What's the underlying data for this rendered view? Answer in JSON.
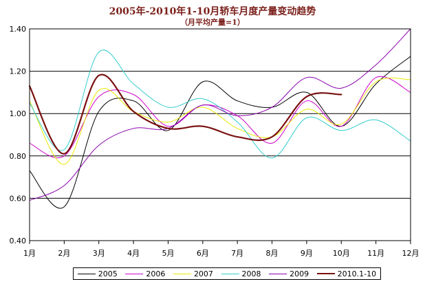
{
  "chart_data": {
    "type": "line",
    "title": "2005年-2010年1-10月轿车月度产量变动趋势",
    "subtitle": "（月平均产量=1）",
    "categories": [
      "1月",
      "2月",
      "3月",
      "4月",
      "5月",
      "6月",
      "7月",
      "8月",
      "9月",
      "10月",
      "11月",
      "12月"
    ],
    "ylim": [
      0.4,
      1.4
    ],
    "yticks": [
      "0.40",
      "0.60",
      "0.80",
      "1.00",
      "1.20",
      "1.40"
    ],
    "grid": true,
    "legend_position": "bottom",
    "series": [
      {
        "name": "2005",
        "color": "#000000",
        "width": 1,
        "values": [
          0.73,
          0.56,
          1.01,
          1.06,
          0.92,
          1.15,
          1.06,
          1.03,
          1.1,
          0.94,
          1.14,
          1.27
        ]
      },
      {
        "name": "2006",
        "color": "#cc00cc",
        "width": 1,
        "values": [
          0.86,
          0.8,
          1.08,
          1.09,
          0.94,
          1.04,
          0.99,
          0.86,
          1.06,
          0.94,
          1.17,
          1.1
        ]
      },
      {
        "name": "2007",
        "color": "#e8e800",
        "width": 1,
        "values": [
          1.06,
          0.76,
          1.11,
          1.01,
          0.96,
          1.03,
          0.93,
          0.89,
          1.02,
          0.95,
          1.15,
          1.16
        ]
      },
      {
        "name": "2008",
        "color": "#33cccc",
        "width": 1,
        "values": [
          1.05,
          0.83,
          1.29,
          1.14,
          1.03,
          1.07,
          0.96,
          0.79,
          0.98,
          0.92,
          0.97,
          0.87
        ]
      },
      {
        "name": "2009",
        "color": "#8800aa",
        "width": 1,
        "values": [
          0.59,
          0.66,
          0.85,
          0.93,
          0.93,
          1.04,
          0.99,
          1.03,
          1.17,
          1.12,
          1.23,
          1.4
        ]
      },
      {
        "name": "2010.1-10",
        "color": "#7a1010",
        "width": 2.2,
        "values": [
          1.13,
          0.81,
          1.18,
          1.01,
          0.93,
          0.94,
          0.89,
          0.89,
          1.08,
          1.09,
          null,
          null
        ]
      }
    ]
  }
}
